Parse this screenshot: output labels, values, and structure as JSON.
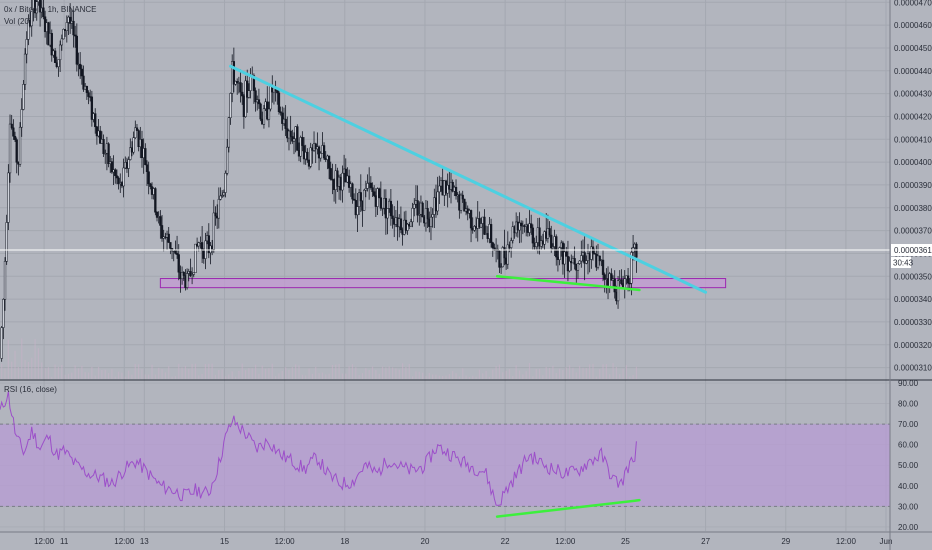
{
  "header": {
    "symbol": "0x / Bitcoin, 1h, BINANCE",
    "volume_label": "Vol (20)"
  },
  "rsi_pane": {
    "label": "RSI (16, close)"
  },
  "colors": {
    "background": "#b2b5be",
    "grid": "#a4a8b1",
    "candle": "#131722",
    "trendline": "#4dd0e1",
    "divergence": "#3cf03c",
    "support_zone_fill": "#c39bd3",
    "support_zone_border": "#9c27b0",
    "rsi_band": "#b89ad6",
    "rsi_line": "#9c4fc9",
    "price_line": "#ffffff"
  },
  "chart_data": [
    {
      "type": "candlestick",
      "title": "0x / Bitcoin, 1h, BINANCE",
      "x_ticks": [
        "12:00",
        "11",
        "12:00",
        "13",
        "15",
        "12:00",
        "18",
        "20",
        "22",
        "12:00",
        "25",
        "27",
        "29",
        "12:00",
        "Jun"
      ],
      "y_ticks": [
        "0.00003100",
        "0.00003200",
        "0.00003300",
        "0.00003400",
        "0.00003500",
        "0.00003600",
        "0.00003700",
        "0.00003800",
        "0.00003900",
        "0.00004000",
        "0.00004100",
        "0.00004200",
        "0.00004300",
        "0.00004400",
        "0.00004500",
        "0.00004600",
        "0.00004700"
      ],
      "ylim": [
        3.05e-05,
        4.71e-05
      ],
      "xlim_days": [
        9.4,
        31.6
      ],
      "last_price": "0.00003615",
      "countdown": "30:43",
      "price_path": [
        [
          9.4,
          3.14e-05
        ],
        [
          9.5,
          3.45e-05
        ],
        [
          9.65,
          4.2e-05
        ],
        [
          9.85,
          3.98e-05
        ],
        [
          10.05,
          4.55e-05
        ],
        [
          10.3,
          4.72e-05
        ],
        [
          10.6,
          4.55e-05
        ],
        [
          10.85,
          4.45e-05
        ],
        [
          11.1,
          4.65e-05
        ],
        [
          11.3,
          4.48e-05
        ],
        [
          11.6,
          4.28e-05
        ],
        [
          12.0,
          4.05e-05
        ],
        [
          12.4,
          3.88e-05
        ],
        [
          12.8,
          4.15e-05
        ],
        [
          13.1,
          3.95e-05
        ],
        [
          13.4,
          3.7e-05
        ],
        [
          13.7,
          3.63e-05
        ],
        [
          13.9,
          3.5e-05
        ],
        [
          14.1,
          3.48e-05
        ],
        [
          14.35,
          3.65e-05
        ],
        [
          14.6,
          3.62e-05
        ],
        [
          14.85,
          3.8e-05
        ],
        [
          15.0,
          3.9e-05
        ],
        [
          15.1,
          4.2e-05
        ],
        [
          15.2,
          4.4e-05
        ],
        [
          15.45,
          4.25e-05
        ],
        [
          15.7,
          4.38e-05
        ],
        [
          15.95,
          4.18e-05
        ],
        [
          16.2,
          4.32e-05
        ],
        [
          16.5,
          4.15e-05
        ],
        [
          16.8,
          4.1e-05
        ],
        [
          17.1,
          4.02e-05
        ],
        [
          17.4,
          4.05e-05
        ],
        [
          17.7,
          3.92e-05
        ],
        [
          18.0,
          3.92e-05
        ],
        [
          18.3,
          3.82e-05
        ],
        [
          18.6,
          3.88e-05
        ],
        [
          18.9,
          3.83e-05
        ],
        [
          19.2,
          3.78e-05
        ],
        [
          19.5,
          3.72e-05
        ],
        [
          19.8,
          3.8e-05
        ],
        [
          20.1,
          3.77e-05
        ],
        [
          20.4,
          3.9e-05
        ],
        [
          20.7,
          3.86e-05
        ],
        [
          21.0,
          3.8e-05
        ],
        [
          21.3,
          3.72e-05
        ],
        [
          21.6,
          3.7e-05
        ],
        [
          21.85,
          3.55e-05
        ],
        [
          22.1,
          3.65e-05
        ],
        [
          22.3,
          3.75e-05
        ],
        [
          22.55,
          3.72e-05
        ],
        [
          22.8,
          3.65e-05
        ],
        [
          23.1,
          3.68e-05
        ],
        [
          23.4,
          3.6e-05
        ],
        [
          23.7,
          3.58e-05
        ],
        [
          24.0,
          3.6e-05
        ],
        [
          24.3,
          3.56e-05
        ],
        [
          24.55,
          3.5e-05
        ],
        [
          24.8,
          3.45e-05
        ],
        [
          25.05,
          3.5e-05
        ],
        [
          25.2,
          3.58e-05
        ],
        [
          25.3,
          3.62e-05
        ]
      ],
      "annotations": [
        {
          "kind": "trendline",
          "from": [
            15.15,
            4.42e-05
          ],
          "to": [
            27.0,
            3.43e-05
          ]
        },
        {
          "kind": "divergence_line",
          "from": [
            21.8,
            3.5e-05
          ],
          "to": [
            25.35,
            3.44e-05
          ]
        },
        {
          "kind": "support_zone",
          "x": [
            13.4,
            27.5
          ],
          "y": [
            3.45e-05,
            3.49e-05
          ]
        }
      ]
    },
    {
      "type": "line",
      "title": "RSI (16, close)",
      "y_ticks": [
        "20.00",
        "30.00",
        "40.00",
        "50.00",
        "60.00",
        "70.00",
        "80.00",
        "90.00"
      ],
      "ylim": [
        18,
        91
      ],
      "band": [
        30,
        70
      ],
      "series": [
        {
          "name": "RSI (16, close)",
          "points": [
            [
              9.4,
              76
            ],
            [
              9.6,
              85
            ],
            [
              9.8,
              64
            ],
            [
              10.0,
              56
            ],
            [
              10.2,
              67
            ],
            [
              10.4,
              58
            ],
            [
              10.6,
              64
            ],
            [
              10.8,
              55
            ],
            [
              11.0,
              57
            ],
            [
              11.3,
              50
            ],
            [
              11.6,
              46
            ],
            [
              11.9,
              44
            ],
            [
              12.2,
              41
            ],
            [
              12.5,
              48
            ],
            [
              12.8,
              52
            ],
            [
              13.1,
              46
            ],
            [
              13.4,
              40
            ],
            [
              13.7,
              38
            ],
            [
              14.0,
              35
            ],
            [
              14.3,
              38
            ],
            [
              14.6,
              36
            ],
            [
              14.85,
              50
            ],
            [
              15.0,
              62
            ],
            [
              15.2,
              72
            ],
            [
              15.5,
              66
            ],
            [
              15.8,
              58
            ],
            [
              16.1,
              62
            ],
            [
              16.4,
              55
            ],
            [
              16.7,
              52
            ],
            [
              17.0,
              48
            ],
            [
              17.3,
              54
            ],
            [
              17.6,
              45
            ],
            [
              17.9,
              41
            ],
            [
              18.2,
              42
            ],
            [
              18.5,
              50
            ],
            [
              18.8,
              46
            ],
            [
              19.1,
              53
            ],
            [
              19.4,
              49
            ],
            [
              19.7,
              47
            ],
            [
              20.0,
              50
            ],
            [
              20.3,
              59
            ],
            [
              20.6,
              56
            ],
            [
              20.9,
              52
            ],
            [
              21.2,
              49
            ],
            [
              21.5,
              47
            ],
            [
              21.8,
              30
            ],
            [
              22.0,
              37
            ],
            [
              22.3,
              46
            ],
            [
              22.6,
              55
            ],
            [
              22.9,
              51
            ],
            [
              23.2,
              48
            ],
            [
              23.5,
              46
            ],
            [
              23.8,
              47
            ],
            [
              24.1,
              52
            ],
            [
              24.4,
              55
            ],
            [
              24.7,
              43
            ],
            [
              24.9,
              41
            ],
            [
              25.05,
              49
            ],
            [
              25.2,
              52
            ],
            [
              25.3,
              62
            ]
          ]
        }
      ],
      "annotations": [
        {
          "kind": "divergence_line",
          "from": [
            21.8,
            25
          ],
          "to": [
            25.35,
            33
          ]
        }
      ]
    }
  ]
}
